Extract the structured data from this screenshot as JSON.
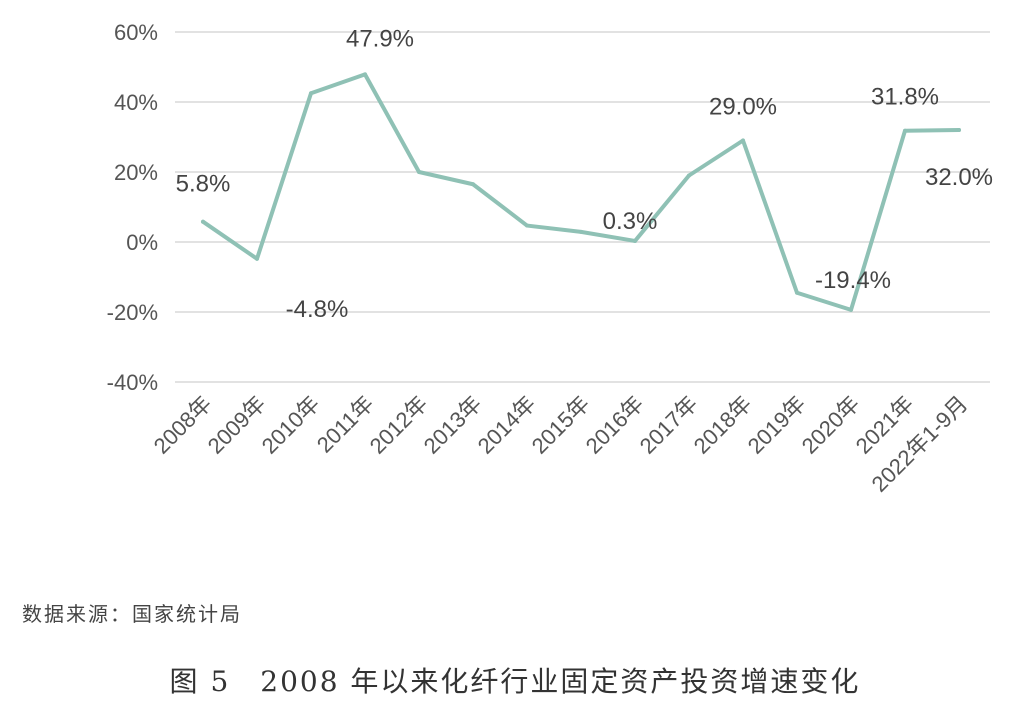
{
  "chart_data": {
    "type": "line",
    "categories": [
      "2008年",
      "2009年",
      "2010年",
      "2011年",
      "2012年",
      "2013年",
      "2014年",
      "2015年",
      "2016年",
      "2017年",
      "2018年",
      "2019年",
      "2020年",
      "2021年",
      "2022年1-9月"
    ],
    "values": [
      5.8,
      -4.8,
      42.5,
      47.9,
      20.0,
      16.5,
      4.7,
      2.9,
      0.3,
      19.0,
      29.0,
      -14.5,
      -19.4,
      31.8,
      32.0
    ],
    "data_labels": [
      {
        "index": 0,
        "text": "5.8%"
      },
      {
        "index": 1,
        "text": "-4.8%"
      },
      {
        "index": 3,
        "text": "47.9%"
      },
      {
        "index": 8,
        "text": "0.3%"
      },
      {
        "index": 10,
        "text": "29.0%"
      },
      {
        "index": 12,
        "text": "-19.4%"
      },
      {
        "index": 13,
        "text": "31.8%"
      },
      {
        "index": 14,
        "text": "32.0%"
      }
    ],
    "y_ticks": [
      "60%",
      "40%",
      "20%",
      "0%",
      "-20%",
      "-40%"
    ],
    "ylim": [
      -40,
      60
    ],
    "grid": true,
    "colors": {
      "line": "#8fc1b5",
      "grid": "#d9d9d9"
    }
  },
  "source": "数据来源：国家统计局",
  "caption": "图 5　2008 年以来化纤行业固定资产投资增速变化"
}
